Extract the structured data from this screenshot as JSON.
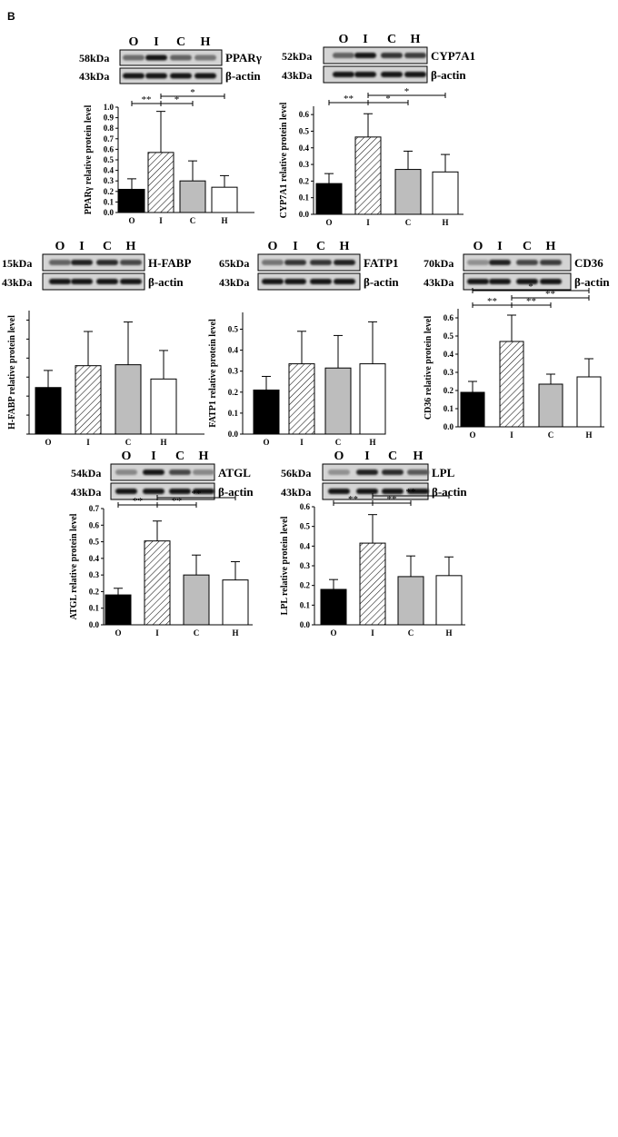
{
  "figure": {
    "panel_label": "B"
  },
  "palette": {
    "O": "#000000",
    "I": "hatched",
    "C": "#bdbdbd",
    "H": "#ffffff"
  },
  "chart_data": [
    {
      "id": "pparg",
      "type": "bar",
      "lane_labels": [
        "O",
        "I",
        "C",
        "H"
      ],
      "blot": {
        "target_mw": "58kDa",
        "target_name": "PPARγ",
        "control_mw": "43kDa",
        "control_name": "β-actin"
      },
      "ylabel": "PPARγ relative protein level",
      "xlabel": "",
      "categories": [
        "O",
        "I",
        "C",
        "H"
      ],
      "values": [
        0.22,
        0.57,
        0.3,
        0.24
      ],
      "errors": [
        0.1,
        0.39,
        0.19,
        0.11
      ],
      "ylim": [
        0,
        1.0
      ],
      "yticks": [
        "0.0",
        "0.1",
        "0.2",
        "0.3",
        "0.4",
        "0.5",
        "0.6",
        "0.7",
        "0.8",
        "0.9",
        "1.0"
      ],
      "significance": [
        {
          "from": 0,
          "to": 1,
          "label": "**",
          "level": 0
        },
        {
          "from": 1,
          "to": 2,
          "label": "*",
          "level": 0
        },
        {
          "from": 1,
          "to": 3,
          "label": "*",
          "level": 1
        }
      ]
    },
    {
      "id": "cyp7a1",
      "type": "bar",
      "lane_labels": [
        "O",
        "I",
        "C",
        "H"
      ],
      "blot": {
        "target_mw": "52kDa",
        "target_name": "CYP7A1",
        "control_mw": "43kDa",
        "control_name": "β-actin"
      },
      "ylabel": "CYP7A1 relative protein level",
      "xlabel": "",
      "categories": [
        "O",
        "I",
        "C",
        "H"
      ],
      "values": [
        0.185,
        0.465,
        0.27,
        0.255
      ],
      "errors": [
        0.06,
        0.14,
        0.11,
        0.105
      ],
      "ylim": [
        0,
        0.65
      ],
      "yticks": [
        "0.0",
        "0.1",
        "0.2",
        "0.3",
        "0.4",
        "0.5",
        "0.6"
      ],
      "significance": [
        {
          "from": 0,
          "to": 1,
          "label": "**",
          "level": 0
        },
        {
          "from": 1,
          "to": 2,
          "label": "*",
          "level": 0
        },
        {
          "from": 1,
          "to": 3,
          "label": "*",
          "level": 1
        }
      ]
    },
    {
      "id": "hfabp",
      "type": "bar",
      "lane_labels": [
        "O",
        "I",
        "C",
        "H"
      ],
      "blot": {
        "target_mw": "15kDa",
        "target_name": "H-FABP",
        "control_mw": "43kDa",
        "control_name": "β-actin"
      },
      "ylabel": "H-FABP relative protein level",
      "xlabel": "",
      "categories": [
        "O",
        "I",
        "C",
        "H"
      ],
      "values": [
        0.245,
        0.36,
        0.365,
        0.29
      ],
      "errors": [
        0.09,
        0.18,
        0.225,
        0.15
      ],
      "ylim": [
        0,
        0.65
      ],
      "yticks": [],
      "significance": []
    },
    {
      "id": "fatp1",
      "type": "bar",
      "lane_labels": [
        "O",
        "I",
        "C",
        "H"
      ],
      "blot": {
        "target_mw": "65kDa",
        "target_name": "FATP1",
        "control_mw": "43kDa",
        "control_name": "β-actin"
      },
      "ylabel": "FATP1 relative protein level",
      "xlabel": "",
      "categories": [
        "O",
        "I",
        "C",
        "H"
      ],
      "values": [
        0.21,
        0.335,
        0.315,
        0.335
      ],
      "errors": [
        0.065,
        0.155,
        0.155,
        0.2
      ],
      "ylim": [
        0,
        0.58
      ],
      "yticks": [
        "0.0",
        "0.1",
        "0.2",
        "0.3",
        "0.4",
        "0.5"
      ],
      "significance": []
    },
    {
      "id": "cd36",
      "type": "bar",
      "lane_labels": [
        "O",
        "I",
        "C",
        "H"
      ],
      "blot": {
        "target_mw": "70kDa",
        "target_name": "CD36",
        "control_mw": "43kDa",
        "control_name": "β-actin"
      },
      "ylabel": "CD36 relative protein level",
      "xlabel": "",
      "categories": [
        "O",
        "I",
        "C",
        "H"
      ],
      "values": [
        0.19,
        0.47,
        0.235,
        0.275
      ],
      "errors": [
        0.06,
        0.145,
        0.055,
        0.1
      ],
      "ylim": [
        0,
        0.65
      ],
      "yticks": [
        "0.0",
        "0.1",
        "0.2",
        "0.3",
        "0.4",
        "0.5",
        "0.6"
      ],
      "significance": [
        {
          "from": 0,
          "to": 1,
          "label": "**",
          "level": 0
        },
        {
          "from": 1,
          "to": 2,
          "label": "**",
          "level": 0
        },
        {
          "from": 1,
          "to": 3,
          "label": "**",
          "level": 1
        },
        {
          "from": 0,
          "to": 3,
          "label": "*",
          "level": 2
        }
      ]
    },
    {
      "id": "atgl",
      "type": "bar",
      "lane_labels": [
        "O",
        "I",
        "C",
        "H"
      ],
      "blot": {
        "target_mw": "54kDa",
        "target_name": "ATGL",
        "control_mw": "43kDa",
        "control_name": "β-actin"
      },
      "ylabel": "ATGL relative protein level",
      "xlabel": "",
      "categories": [
        "O",
        "I",
        "C",
        "H"
      ],
      "values": [
        0.18,
        0.505,
        0.3,
        0.27
      ],
      "errors": [
        0.04,
        0.12,
        0.12,
        0.11
      ],
      "ylim": [
        0,
        0.7
      ],
      "yticks": [
        "0.0",
        "0.1",
        "0.2",
        "0.3",
        "0.4",
        "0.5",
        "0.6",
        "0.7"
      ],
      "significance": [
        {
          "from": 0,
          "to": 1,
          "label": "**",
          "level": 0
        },
        {
          "from": 1,
          "to": 2,
          "label": "**",
          "level": 0
        },
        {
          "from": 1,
          "to": 3,
          "label": "**",
          "level": 1
        }
      ]
    },
    {
      "id": "lpl",
      "type": "bar",
      "lane_labels": [
        "O",
        "I",
        "C",
        "H"
      ],
      "blot": {
        "target_mw": "56kDa",
        "target_name": "LPL",
        "control_mw": "43kDa",
        "control_name": "β-actin"
      },
      "ylabel": "LPL relative protein level",
      "xlabel": "",
      "categories": [
        "O",
        "I",
        "C",
        "H"
      ],
      "values": [
        0.18,
        0.415,
        0.245,
        0.25
      ],
      "errors": [
        0.05,
        0.145,
        0.105,
        0.095
      ],
      "ylim": [
        0,
        0.6
      ],
      "yticks": [
        "0.0",
        "0.1",
        "0.2",
        "0.3",
        "0.4",
        "0.5",
        "0.6"
      ],
      "significance": [
        {
          "from": 0,
          "to": 1,
          "label": "**",
          "level": 0
        },
        {
          "from": 1,
          "to": 2,
          "label": "**",
          "level": 0
        },
        {
          "from": 1,
          "to": 3,
          "label": "**",
          "level": 1
        }
      ]
    }
  ]
}
